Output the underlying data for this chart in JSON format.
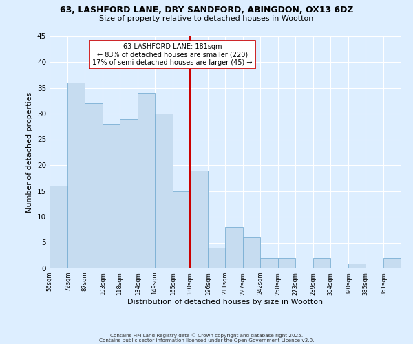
{
  "title": "63, LASHFORD LANE, DRY SANDFORD, ABINGDON, OX13 6DZ",
  "subtitle": "Size of property relative to detached houses in Wootton",
  "xlabel": "Distribution of detached houses by size in Wootton",
  "ylabel": "Number of detached properties",
  "bar_color": "#c6dcf0",
  "bar_edge_color": "#7aafd4",
  "background_color": "#ddeeff",
  "grid_color": "#ffffff",
  "vline_x": 180,
  "vline_color": "#cc0000",
  "annotation_title": "63 LASHFORD LANE: 181sqm",
  "annotation_line1": "← 83% of detached houses are smaller (220)",
  "annotation_line2": "17% of semi-detached houses are larger (45) →",
  "annotation_box_color": "#ffffff",
  "annotation_box_edge": "#cc0000",
  "bins": [
    56,
    72,
    87,
    103,
    118,
    134,
    149,
    165,
    180,
    196,
    211,
    227,
    242,
    258,
    273,
    289,
    304,
    320,
    335,
    351,
    366
  ],
  "counts": [
    16,
    36,
    32,
    28,
    29,
    34,
    30,
    15,
    19,
    4,
    8,
    6,
    2,
    2,
    0,
    2,
    0,
    1,
    0,
    2
  ],
  "ylim": [
    0,
    45
  ],
  "yticks": [
    0,
    5,
    10,
    15,
    20,
    25,
    30,
    35,
    40,
    45
  ],
  "footer1": "Contains HM Land Registry data © Crown copyright and database right 2025.",
  "footer2": "Contains public sector information licensed under the Open Government Licence v3.0."
}
